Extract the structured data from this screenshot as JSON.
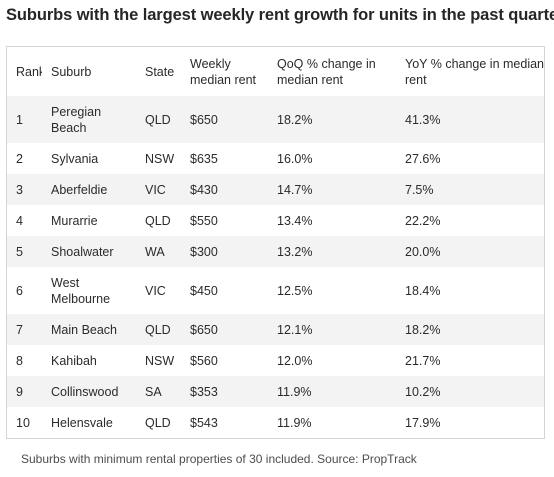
{
  "title": "Suburbs with the largest weekly rent growth for units in the past quarter",
  "table": {
    "headers": {
      "rank": "Rank",
      "suburb": "Suburb",
      "state": "State",
      "rent": "Weekly median rent",
      "qoq": "QoQ % change in median rent",
      "yoy": "YoY % change in median rent"
    },
    "rows": [
      {
        "rank": "1",
        "suburb": "Peregian Beach",
        "state": "QLD",
        "rent": "$650",
        "qoq": "18.2%",
        "yoy": "41.3%"
      },
      {
        "rank": "2",
        "suburb": "Sylvania",
        "state": "NSW",
        "rent": "$635",
        "qoq": "16.0%",
        "yoy": "27.6%"
      },
      {
        "rank": "3",
        "suburb": "Aberfeldie",
        "state": "VIC",
        "rent": "$430",
        "qoq": "14.7%",
        "yoy": "7.5%"
      },
      {
        "rank": "4",
        "suburb": "Murarrie",
        "state": "QLD",
        "rent": "$550",
        "qoq": "13.4%",
        "yoy": "22.2%"
      },
      {
        "rank": "5",
        "suburb": "Shoalwater",
        "state": "WA",
        "rent": "$300",
        "qoq": "13.2%",
        "yoy": "20.0%"
      },
      {
        "rank": "6",
        "suburb": "West Melbourne",
        "state": "VIC",
        "rent": "$450",
        "qoq": "12.5%",
        "yoy": "18.4%"
      },
      {
        "rank": "7",
        "suburb": "Main Beach",
        "state": "QLD",
        "rent": "$650",
        "qoq": "12.1%",
        "yoy": "18.2%"
      },
      {
        "rank": "8",
        "suburb": "Kahibah",
        "state": "NSW",
        "rent": "$560",
        "qoq": "12.0%",
        "yoy": "21.7%"
      },
      {
        "rank": "9",
        "suburb": "Collinswood",
        "state": "SA",
        "rent": "$353",
        "qoq": "11.9%",
        "yoy": "10.2%"
      },
      {
        "rank": "10",
        "suburb": "Helensvale",
        "state": "QLD",
        "rent": "$543",
        "qoq": "11.9%",
        "yoy": "17.9%"
      }
    ]
  },
  "footnote": "Suburbs with minimum rental properties of 30 included. Source: PropTrack",
  "colors": {
    "row_shade": "#f3f3f3",
    "border": "#d4d4d4",
    "text": "#2b2b2b"
  }
}
